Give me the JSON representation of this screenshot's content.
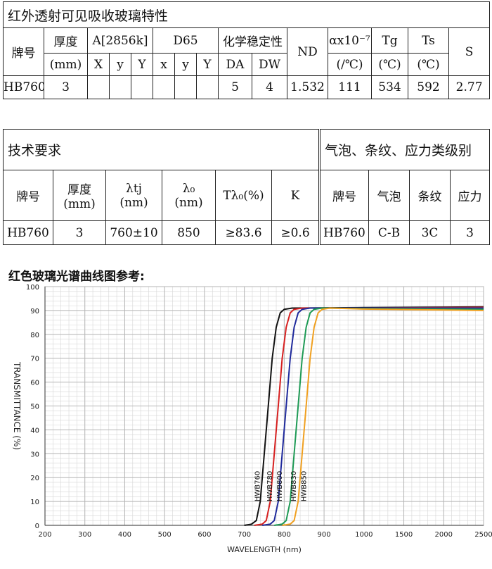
{
  "table1": {
    "title": "红外透射可见吸收玻璃特性",
    "headers": {
      "grade": "牌号",
      "thickness": "厚度",
      "thickness_unit": "(mm)",
      "a2856k": "A[2856k]",
      "d65": "D65",
      "chem": "化学稳定性",
      "nd": "ND",
      "alpha": "αx10⁻⁷",
      "alpha_unit": "(/℃)",
      "tg": "Tg",
      "tg_unit": "(℃)",
      "ts": "Ts",
      "ts_unit": "(℃)",
      "s": "S",
      "ax": "X",
      "ay": "y",
      "aY": "Y",
      "dx": "x",
      "dy": "y",
      "dY": "Y",
      "da": "DA",
      "dw": "DW"
    },
    "row": {
      "grade": "HB760",
      "thickness": "3",
      "ax": "",
      "ay": "",
      "aY": "",
      "dx": "",
      "dy": "",
      "dY": "",
      "da": "5",
      "dw": "4",
      "nd": "1.532",
      "alpha": "111",
      "tg": "534",
      "ts": "592",
      "s": "2.77"
    }
  },
  "table2": {
    "title": "技术要求",
    "headers": {
      "grade": "牌号",
      "thickness": "厚度",
      "thickness_unit": "(mm)",
      "ltj": "λtj",
      "ltj_unit": "(nm)",
      "l0": "λ₀",
      "l0_unit": "(nm)",
      "tl0": "Tλ₀(%)",
      "k": "K"
    },
    "row": {
      "grade": "HB760",
      "thickness": "3",
      "ltj": "760±10",
      "l0": "850",
      "tl0": "≥83.6",
      "k": "≥0.6"
    }
  },
  "table3": {
    "title": "气泡、条纹、应力类级别",
    "headers": {
      "grade": "牌号",
      "bubble": "气泡",
      "stripe": "条纹",
      "stress": "应力"
    },
    "row": {
      "grade": "HB760",
      "bubble": "C-B",
      "stripe": "3C",
      "stress": "3"
    }
  },
  "chart_title": "红色玻璃光谱曲线图参考:",
  "chart_data": {
    "type": "line",
    "title": "红色玻璃光谱曲线图参考:",
    "xlabel": "WAVELENGTH (nm)",
    "ylabel": "TRANSMITTANCE  (%)",
    "xlim": [
      200,
      2500
    ],
    "ylim": [
      0,
      100
    ],
    "x_scale": "piecewise: 200–1000 linear (100 nm per major tick), 1000–2500 compressed (500 nm per major tick)",
    "x_ticks": [
      200,
      300,
      400,
      500,
      600,
      700,
      800,
      900,
      1000,
      1500,
      2000,
      2500
    ],
    "y_ticks": [
      0,
      10,
      20,
      30,
      40,
      50,
      60,
      70,
      80,
      90,
      100
    ],
    "grid": true,
    "series": [
      {
        "name": "HWB760",
        "color": "#111111",
        "points": [
          [
            700,
            0
          ],
          [
            718,
            0.5
          ],
          [
            730,
            2
          ],
          [
            740,
            10
          ],
          [
            750,
            30
          ],
          [
            760,
            50
          ],
          [
            770,
            70
          ],
          [
            780,
            83
          ],
          [
            790,
            89
          ],
          [
            800,
            90.5
          ],
          [
            820,
            91
          ],
          [
            1000,
            91.2
          ],
          [
            2500,
            91.5
          ]
        ]
      },
      {
        "name": "HWB780",
        "color": "#d62020",
        "points": [
          [
            725,
            0
          ],
          [
            745,
            0.5
          ],
          [
            755,
            2
          ],
          [
            765,
            10
          ],
          [
            775,
            30
          ],
          [
            785,
            50
          ],
          [
            795,
            70
          ],
          [
            805,
            83
          ],
          [
            815,
            89
          ],
          [
            825,
            90.5
          ],
          [
            845,
            91
          ],
          [
            1000,
            91
          ],
          [
            2500,
            91.3
          ]
        ]
      },
      {
        "name": "HWB800",
        "color": "#1f2a9c",
        "points": [
          [
            745,
            0
          ],
          [
            765,
            0.5
          ],
          [
            775,
            2
          ],
          [
            785,
            10
          ],
          [
            795,
            30
          ],
          [
            805,
            50
          ],
          [
            815,
            70
          ],
          [
            825,
            83
          ],
          [
            835,
            89
          ],
          [
            845,
            90.5
          ],
          [
            865,
            91
          ],
          [
            1000,
            91
          ],
          [
            2500,
            91
          ]
        ]
      },
      {
        "name": "HWB830",
        "color": "#1e9a55",
        "points": [
          [
            775,
            0
          ],
          [
            795,
            0.5
          ],
          [
            805,
            2
          ],
          [
            815,
            10
          ],
          [
            825,
            30
          ],
          [
            835,
            50
          ],
          [
            845,
            70
          ],
          [
            855,
            83
          ],
          [
            865,
            89
          ],
          [
            875,
            90.5
          ],
          [
            895,
            91
          ],
          [
            1000,
            90.8
          ],
          [
            2500,
            90.5
          ]
        ]
      },
      {
        "name": "HWB850",
        "color": "#f0a020",
        "points": [
          [
            795,
            0
          ],
          [
            815,
            0.5
          ],
          [
            825,
            2
          ],
          [
            835,
            10
          ],
          [
            845,
            30
          ],
          [
            855,
            50
          ],
          [
            865,
            70
          ],
          [
            875,
            83
          ],
          [
            885,
            89
          ],
          [
            895,
            90.5
          ],
          [
            915,
            91
          ],
          [
            1000,
            90.6
          ],
          [
            2500,
            90
          ]
        ]
      }
    ]
  }
}
